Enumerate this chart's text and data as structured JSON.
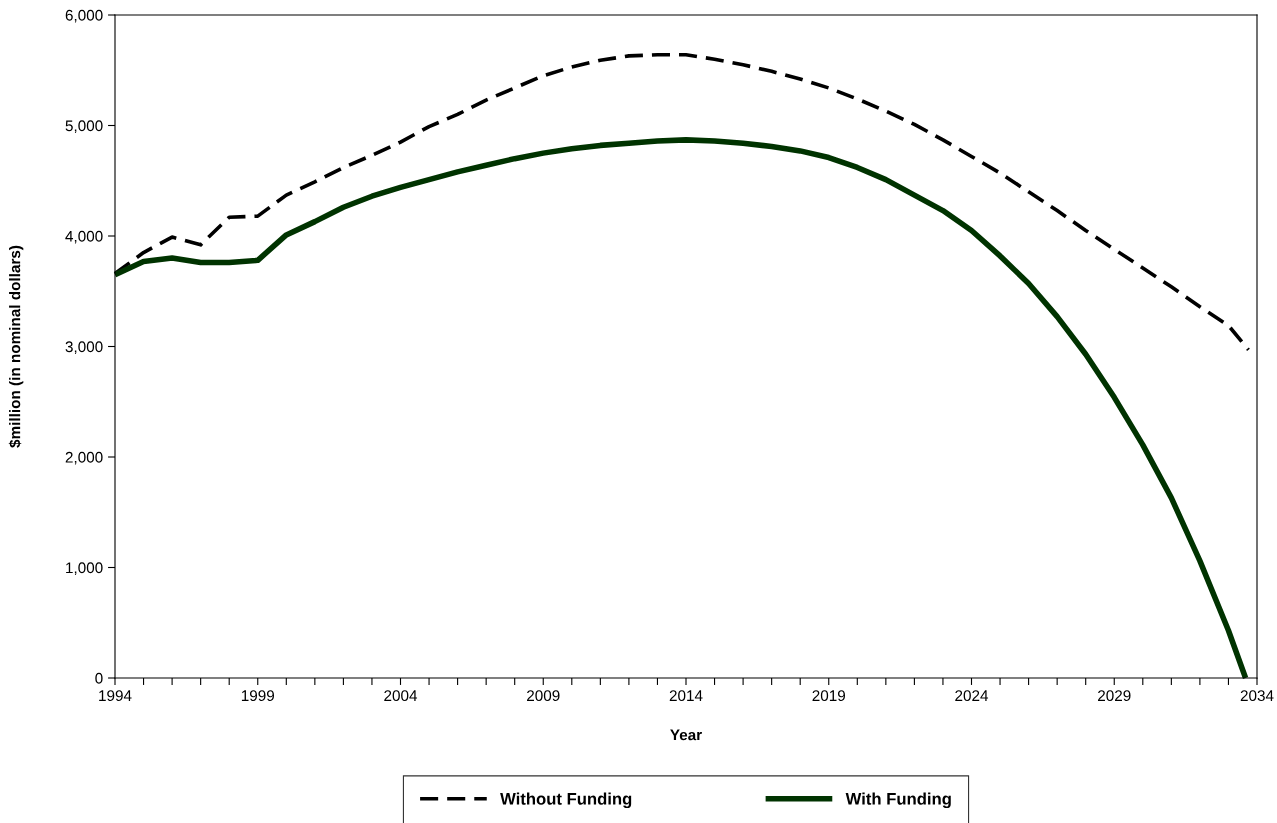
{
  "chart_data": {
    "type": "line",
    "xlabel": "Year",
    "ylabel": "$million (in nominal dollars)",
    "xlim": [
      1994,
      2034
    ],
    "xticks": [
      1994,
      {
        "value": 1995,
        "label": null
      },
      {
        "value": 1996,
        "label": null
      },
      {
        "value": 1997,
        "label": null
      },
      {
        "value": 1998,
        "label": null
      },
      1999,
      {
        "value": 2000,
        "label": null
      },
      {
        "value": 2001,
        "label": null
      },
      {
        "value": 2002,
        "label": null
      },
      {
        "value": 2003,
        "label": null
      },
      2004,
      {
        "value": 2005,
        "label": null
      },
      {
        "value": 2006,
        "label": null
      },
      {
        "value": 2007,
        "label": null
      },
      {
        "value": 2008,
        "label": null
      },
      2009,
      {
        "value": 2010,
        "label": null
      },
      {
        "value": 2011,
        "label": null
      },
      {
        "value": 2012,
        "label": null
      },
      {
        "value": 2013,
        "label": null
      },
      2014,
      {
        "value": 2015,
        "label": null
      },
      {
        "value": 2016,
        "label": null
      },
      {
        "value": 2017,
        "label": null
      },
      {
        "value": 2018,
        "label": null
      },
      2019,
      {
        "value": 2020,
        "label": null
      },
      {
        "value": 2021,
        "label": null
      },
      {
        "value": 2022,
        "label": null
      },
      {
        "value": 2023,
        "label": null
      },
      2024,
      {
        "value": 2025,
        "label": null
      },
      {
        "value": 2026,
        "label": null
      },
      {
        "value": 2027,
        "label": null
      },
      {
        "value": 2028,
        "label": null
      },
      2029,
      {
        "value": 2030,
        "label": null
      },
      {
        "value": 2031,
        "label": null
      },
      {
        "value": 2032,
        "label": null
      },
      {
        "value": 2033,
        "label": null
      },
      2034
    ],
    "ylim": [
      0,
      6000
    ],
    "yticks": [
      0,
      {
        "value": 1000,
        "label": "1,000"
      },
      {
        "value": 2000,
        "label": "2,000"
      },
      {
        "value": 3000,
        "label": "3,000"
      },
      {
        "value": 4000,
        "label": "4,000"
      },
      {
        "value": 5000,
        "label": "5,000"
      },
      {
        "value": 6000,
        "label": "6,000"
      }
    ],
    "grid": false,
    "legend": "bottom",
    "marker": "none",
    "series": [
      {
        "name": "Without Funding",
        "color": "#000000",
        "line_style": "dashed",
        "x": [
          1994,
          1995,
          1996,
          1997,
          1998,
          1999,
          2000,
          2001,
          2002,
          2003,
          2004,
          2005,
          2006,
          2007,
          2008,
          2009,
          2010,
          2011,
          2012,
          2013,
          2014,
          2015,
          2016,
          2017,
          2018,
          2019,
          2020,
          2021,
          2022,
          2023,
          2024,
          2025,
          2026,
          2027,
          2028,
          2029,
          2030,
          2031,
          2032,
          2033,
          2033.7
        ],
        "values": [
          3660,
          3850,
          3990,
          3920,
          4170,
          4180,
          4370,
          4490,
          4620,
          4730,
          4850,
          4990,
          5100,
          5230,
          5340,
          5450,
          5530,
          5590,
          5630,
          5640,
          5640,
          5600,
          5550,
          5490,
          5420,
          5340,
          5240,
          5130,
          5010,
          4870,
          4720,
          4570,
          4400,
          4230,
          4050,
          3880,
          3710,
          3540,
          3360,
          3190,
          2970
        ]
      },
      {
        "name": "With Funding",
        "color": "#003300",
        "line_style": "solid",
        "x": [
          1994,
          1995,
          1996,
          1997,
          1998,
          1999,
          2000,
          2001,
          2002,
          2003,
          2004,
          2005,
          2006,
          2007,
          2008,
          2009,
          2010,
          2011,
          2012,
          2013,
          2014,
          2015,
          2016,
          2017,
          2018,
          2019,
          2020,
          2021,
          2022,
          2023,
          2024,
          2025,
          2026,
          2027,
          2028,
          2029,
          2030,
          2031,
          2032,
          2033,
          2033.6
        ],
        "values": [
          3650,
          3770,
          3800,
          3760,
          3760,
          3780,
          4010,
          4130,
          4260,
          4360,
          4440,
          4510,
          4580,
          4640,
          4700,
          4750,
          4790,
          4820,
          4840,
          4860,
          4870,
          4860,
          4840,
          4810,
          4770,
          4710,
          4620,
          4510,
          4370,
          4230,
          4050,
          3820,
          3570,
          3270,
          2930,
          2540,
          2110,
          1630,
          1060,
          430,
          0
        ]
      }
    ]
  }
}
